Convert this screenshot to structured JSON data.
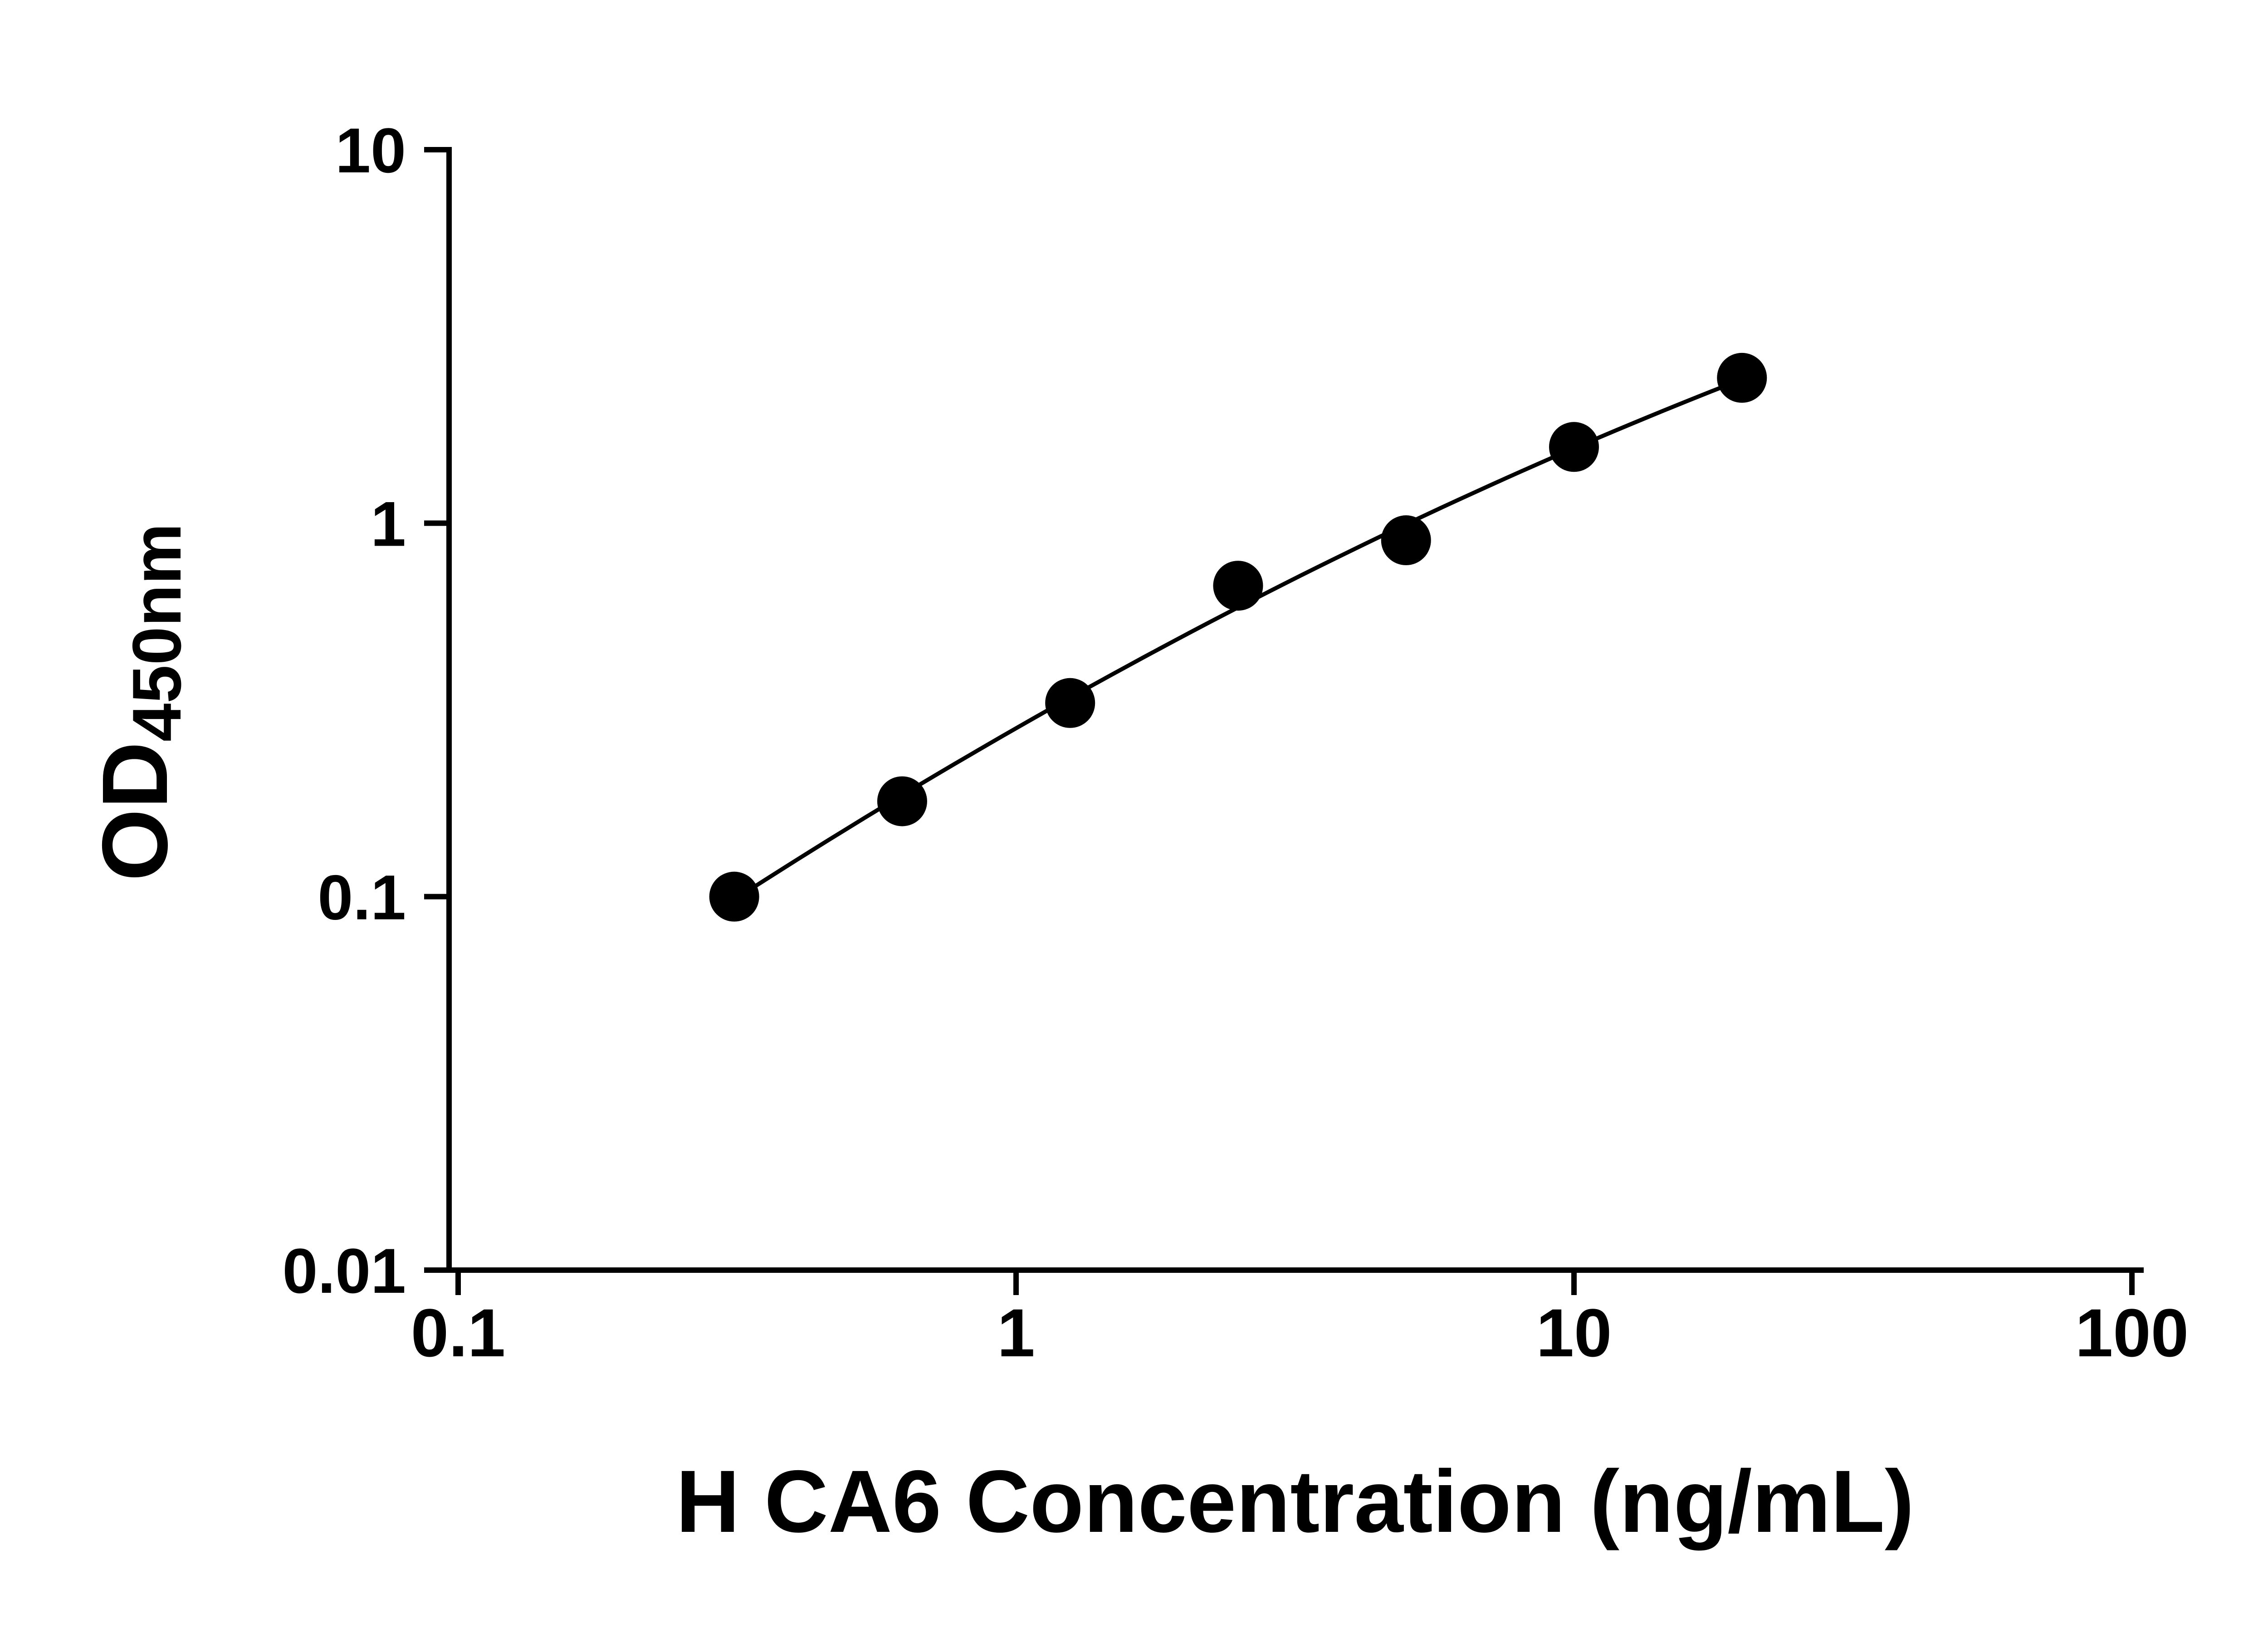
{
  "figure": {
    "background": "#ffffff",
    "foreground": "#000000"
  },
  "chart_data": {
    "type": "scatter",
    "subtype": "elisa-standard-curve-with-fit-line",
    "title": "",
    "xlabel": "H CA6 Concentration (ng/mL)",
    "ylabel": "OD450nm",
    "ylabel_main": "OD",
    "ylabel_sub": "450nm",
    "x_scale": "log10",
    "y_scale": "log10",
    "xlim": [
      0.1,
      100
    ],
    "ylim": [
      0.01,
      10
    ],
    "x_ticks": {
      "values": [
        0.1,
        1,
        10,
        100
      ],
      "labels": [
        "0.1",
        "1",
        "10",
        "100"
      ]
    },
    "y_ticks": {
      "values": [
        0.01,
        0.1,
        1,
        10
      ],
      "labels": [
        "0.01",
        "0.1",
        "1",
        "10"
      ]
    },
    "grid": false,
    "legend": "none",
    "marker": {
      "shape": "circle",
      "color": "#000000"
    },
    "curve": {
      "type": "least-squares-fit",
      "color": "#000000"
    },
    "series": [
      {
        "x": [
          0.3125,
          0.625,
          1.25,
          2.5,
          5,
          10,
          20
        ],
        "y": [
          0.1,
          0.18,
          0.33,
          0.68,
          0.9,
          1.6,
          2.45
        ]
      }
    ]
  }
}
